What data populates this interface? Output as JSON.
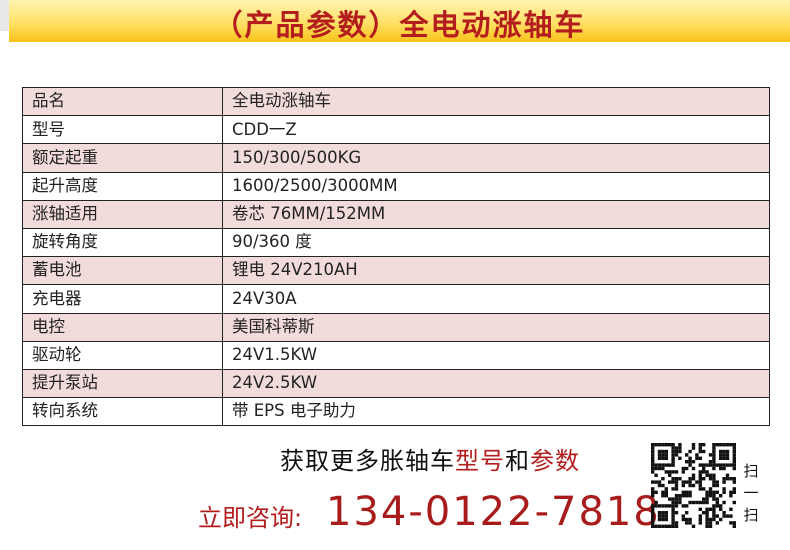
{
  "header": {
    "title": "（产品参数）全电动涨轴车"
  },
  "specs": [
    {
      "label": "品名",
      "value": "全电动涨轴车"
    },
    {
      "label": "型号",
      "value": "CDD一Z"
    },
    {
      "label": "额定起重",
      "value": "150/300/500KG"
    },
    {
      "label": "起升高度",
      "value": "1600/2500/3000MM"
    },
    {
      "label": "涨轴适用",
      "value": "卷芯 76MM/152MM"
    },
    {
      "label": "旋转角度",
      "value": "90/360 度"
    },
    {
      "label": "蓄电池",
      "value": "锂电 24V210AH"
    },
    {
      "label": "充电器",
      "value": "24V30A"
    },
    {
      "label": "电控",
      "value": "美国科蒂斯"
    },
    {
      "label": "驱动轮",
      "value": "24V1.5KW"
    },
    {
      "label": "提升泵站",
      "value": "24V2.5KW"
    },
    {
      "label": "转向系统",
      "value": "带 EPS 电子助力"
    }
  ],
  "footer": {
    "promo_a": "获取更多胀轴车",
    "promo_b": "型号",
    "promo_c": "和",
    "promo_d": "参数",
    "cta_label": "立即咨询:",
    "phone": "134-0122-7818",
    "scan_1": "扫",
    "scan_2": "一",
    "scan_3": "扫"
  },
  "colors": {
    "accent": "#b31d1d",
    "row_pink": "#f2dcdb",
    "banner": "#f8c31a"
  }
}
